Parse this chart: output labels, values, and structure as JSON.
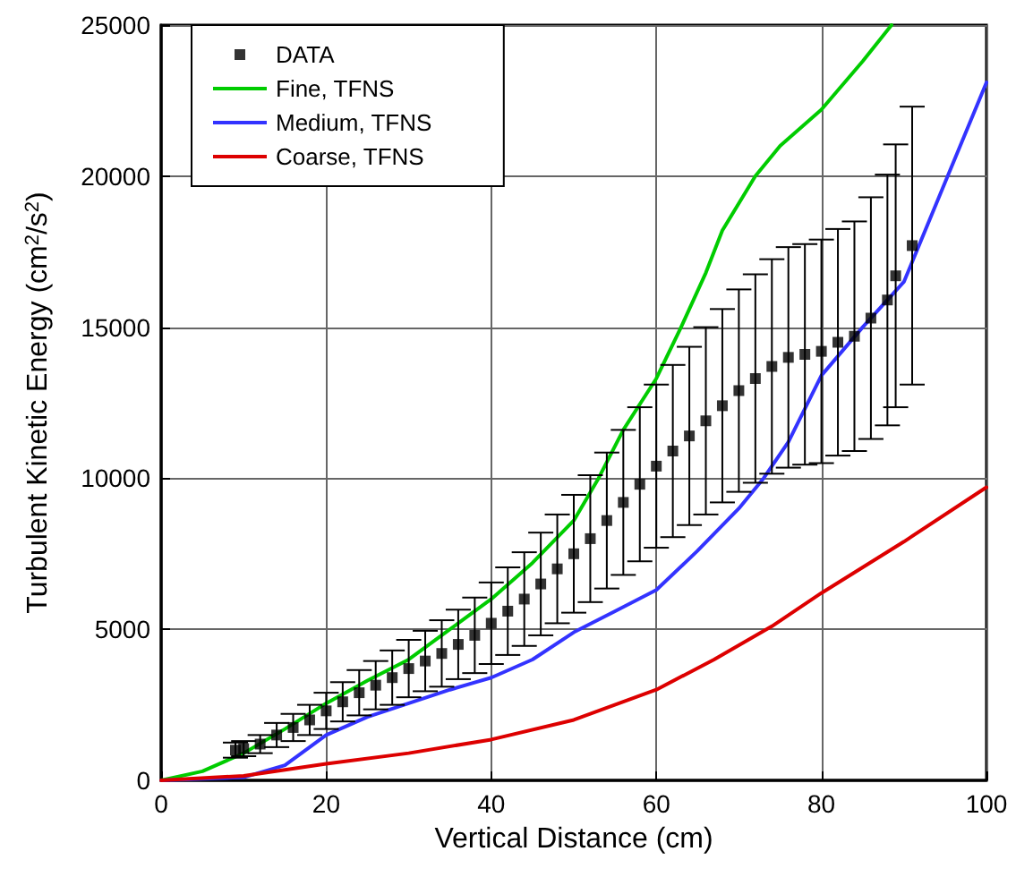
{
  "chart_data": {
    "type": "line",
    "xlabel": "Vertical Distance (cm)",
    "ylabel": "Turbulent Kinetic Energy (cm$^{2}$/s$^{2}$)",
    "xlim": [
      0,
      100
    ],
    "xticks": [
      0,
      20,
      40,
      60,
      80,
      100
    ],
    "ylim": [
      0,
      25000
    ],
    "yticks": [
      0,
      5000,
      10000,
      15000,
      20000,
      25000
    ],
    "grid": true,
    "legend": "top left",
    "series": [
      {
        "name": "DATA",
        "type": "scatter",
        "marker": "square",
        "color": "#000000",
        "x": [
          9,
          10,
          12,
          14,
          16,
          18,
          20,
          22,
          24,
          26,
          28,
          30,
          32,
          34,
          36,
          38,
          40,
          42,
          44,
          46,
          48,
          50,
          52,
          54,
          56,
          58,
          60,
          62,
          64,
          66,
          68,
          70,
          72,
          74,
          76,
          78,
          80,
          82,
          84,
          86,
          88,
          89,
          91
        ],
        "values": [
          1000,
          1050,
          1200,
          1500,
          1750,
          2000,
          2300,
          2600,
          2900,
          3150,
          3400,
          3700,
          3950,
          4200,
          4500,
          4800,
          5200,
          5600,
          6000,
          6500,
          7000,
          7500,
          8000,
          8600,
          9200,
          9800,
          10400,
          10900,
          11400,
          11900,
          12400,
          12900,
          13300,
          13700,
          14000,
          14100,
          14200,
          14500,
          14700,
          15300,
          15900,
          16700,
          17700
        ],
        "errors": [
          250,
          250,
          300,
          400,
          450,
          500,
          600,
          650,
          750,
          800,
          900,
          950,
          1000,
          1100,
          1150,
          1250,
          1350,
          1450,
          1550,
          1700,
          1800,
          1950,
          2100,
          2250,
          2400,
          2550,
          2700,
          2850,
          2950,
          3100,
          3200,
          3350,
          3450,
          3550,
          3650,
          3650,
          3700,
          3750,
          3800,
          4000,
          4150,
          4350,
          4600
        ]
      },
      {
        "name": "Fine, TFNS",
        "color": "#00cc00",
        "x": [
          0,
          5,
          10,
          15,
          20,
          25,
          30,
          35,
          40,
          45,
          50,
          53,
          56,
          60,
          63,
          66,
          68,
          72,
          75,
          80,
          85,
          88.5
        ],
        "values": [
          0,
          300,
          900,
          1700,
          2550,
          3300,
          4000,
          5000,
          6000,
          7200,
          8600,
          10000,
          11600,
          13300,
          15000,
          16800,
          18200,
          20000,
          21000,
          22200,
          23800,
          25000
        ]
      },
      {
        "name": "Medium, TFNS",
        "color": "#3333ff",
        "x": [
          0,
          10,
          15,
          18,
          20,
          25,
          30,
          35,
          40,
          45,
          50,
          55,
          60,
          65,
          70,
          73,
          76,
          80,
          85,
          90,
          95,
          100
        ],
        "values": [
          0,
          100,
          500,
          1100,
          1500,
          2100,
          2550,
          3000,
          3400,
          4000,
          4900,
          5600,
          6300,
          7600,
          9000,
          10000,
          11200,
          13400,
          15000,
          16500,
          19800,
          23100
        ]
      },
      {
        "name": "Coarse, TFNS",
        "color": "#dd0000",
        "x": [
          0,
          10,
          20,
          30,
          40,
          50,
          60,
          67,
          74,
          80,
          90,
          100
        ],
        "values": [
          0,
          150,
          550,
          900,
          1350,
          2000,
          3000,
          4000,
          5100,
          6200,
          7900,
          9700
        ]
      }
    ]
  }
}
